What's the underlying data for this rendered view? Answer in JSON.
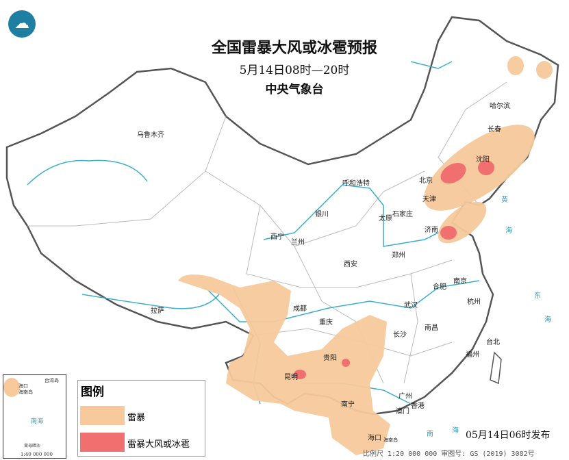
{
  "title": "全国雷暴大风或冰雹预报",
  "subtitle": "5月14日08时—20时",
  "agency": "中央气象台",
  "logo_icon": "cma-logo-icon",
  "issue_time": "05月14日06时发布",
  "scale_text": "比例尺 1:20 000 000    审图号: GS (2019) 3082号",
  "inset": {
    "scale": "1:40 000 000",
    "labels": [
      "台湾岛",
      "海口",
      "海南岛",
      "南海",
      "曾母暗沙"
    ]
  },
  "legend": {
    "title": "图例",
    "items": [
      {
        "label": "雷暴",
        "color": "#f7c99b"
      },
      {
        "label": "雷暴大风或冰雹",
        "color": "#f07070"
      }
    ]
  },
  "colors": {
    "thunderstorm": "#f7c99b",
    "severe": "#f07070",
    "river": "#3aaecb",
    "border": "#888888"
  },
  "cities": [
    {
      "name": "乌鲁木齐"
    },
    {
      "name": "哈尔滨"
    },
    {
      "name": "长春"
    },
    {
      "name": "沈阳"
    },
    {
      "name": "北京"
    },
    {
      "name": "天津"
    },
    {
      "name": "呼和浩特"
    },
    {
      "name": "石家庄"
    },
    {
      "name": "太原"
    },
    {
      "name": "济南"
    },
    {
      "name": "银川"
    },
    {
      "name": "西宁"
    },
    {
      "name": "兰州"
    },
    {
      "name": "郑州"
    },
    {
      "name": "西安"
    },
    {
      "name": "合肥"
    },
    {
      "name": "南京"
    },
    {
      "name": "杭州"
    },
    {
      "name": "武汉"
    },
    {
      "name": "成都"
    },
    {
      "name": "重庆"
    },
    {
      "name": "长沙"
    },
    {
      "name": "南昌"
    },
    {
      "name": "拉萨"
    },
    {
      "name": "贵阳"
    },
    {
      "name": "昆明"
    },
    {
      "name": "南宁"
    },
    {
      "name": "广州"
    },
    {
      "name": "香港"
    },
    {
      "name": "澳门"
    },
    {
      "name": "海口"
    },
    {
      "name": "台北"
    },
    {
      "name": "福州"
    },
    {
      "name": "海南岛"
    }
  ],
  "seas": [
    "黄",
    "海",
    "东",
    "海",
    "南",
    "海"
  ]
}
